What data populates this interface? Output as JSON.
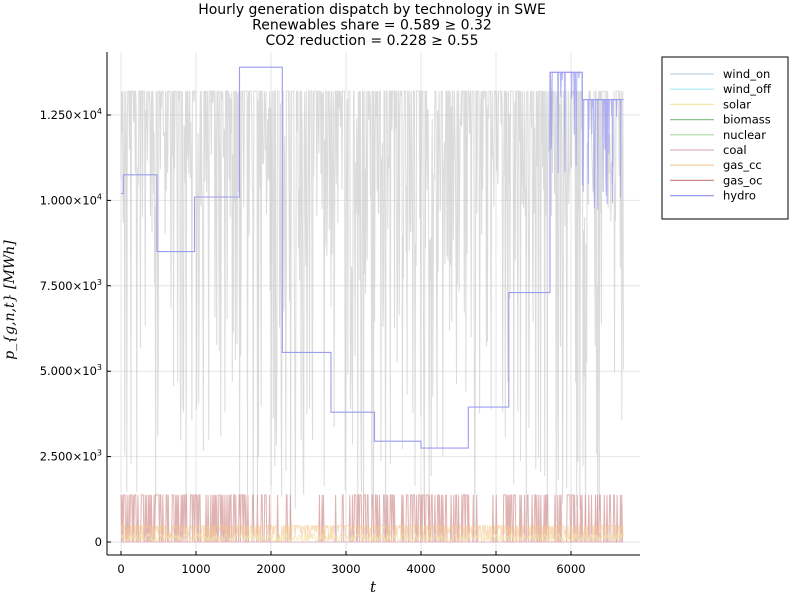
{
  "chart_data": {
    "type": "line",
    "title_lines": [
      "Hourly generation dispatch by technology in SWE",
      "Renewables share = 0.589 ≥ 0.32",
      "CO2 reduction = 0.228 ≥ 0.55"
    ],
    "xlabel": "t",
    "ylabel": "p_{g,n,t} [MWh]",
    "xlim": [
      0,
      6800
    ],
    "ylim": [
      0,
      14000
    ],
    "x_ticks": [
      0,
      1000,
      2000,
      3000,
      4000,
      5000,
      6000
    ],
    "x_tick_labels": [
      "0",
      "1000",
      "2000",
      "3000",
      "4000",
      "5000",
      "6000"
    ],
    "y_ticks": [
      0,
      2500,
      5000,
      7500,
      10000,
      12500
    ],
    "y_tick_labels": [
      {
        "mant": "0",
        "exp": ""
      },
      {
        "mant": "2.500×10",
        "exp": "3"
      },
      {
        "mant": "5.000×10",
        "exp": "3"
      },
      {
        "mant": "7.500×10",
        "exp": "3"
      },
      {
        "mant": "1.000×10",
        "exp": "4"
      },
      {
        "mant": "1.250×10",
        "exp": "4"
      }
    ],
    "grid": true,
    "legend_position": "outside-top-right",
    "series": [
      {
        "name": "wind_on",
        "color": "#bcd3e8"
      },
      {
        "name": "wind_off",
        "color": "#a8ecf2"
      },
      {
        "name": "solar",
        "color": "#f5e6a8"
      },
      {
        "name": "biomass",
        "color": "#8cc48c"
      },
      {
        "name": "nuclear",
        "color": "#a6dca6"
      },
      {
        "name": "coal",
        "color": "#e0b4c4"
      },
      {
        "name": "gas_cc",
        "color": "#f5c890"
      },
      {
        "name": "gas_oc",
        "color": "#d08888"
      },
      {
        "name": "hydro",
        "color": "#9c9cf0",
        "x": [
          0,
          30,
          30,
          480,
          480,
          980,
          980,
          1580,
          1580,
          2150,
          2150,
          2800,
          2800,
          3380,
          3380,
          4000,
          4000,
          4630,
          4630,
          5170,
          5170,
          5720,
          5720,
          6150,
          6150,
          6700
        ],
        "y": [
          10200,
          10200,
          10750,
          10750,
          8500,
          8500,
          10100,
          10100,
          13900,
          13900,
          5550,
          5550,
          3800,
          3800,
          2950,
          2950,
          2750,
          2750,
          3950,
          3950,
          7300,
          7300,
          13750,
          13750,
          12950,
          12950
        ]
      }
    ]
  }
}
